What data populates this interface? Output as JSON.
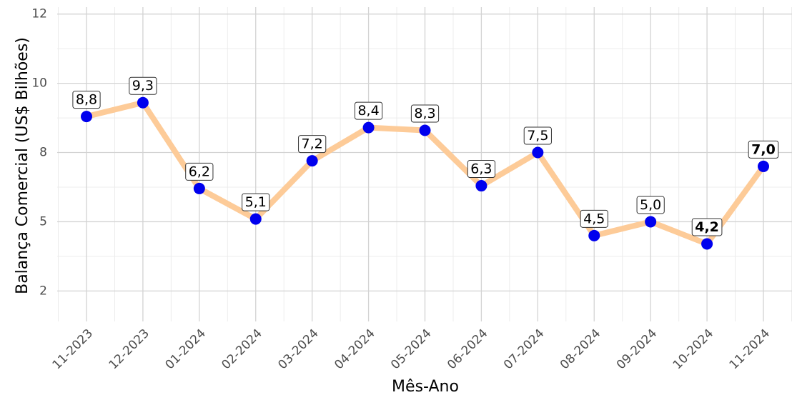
{
  "chart_data": {
    "type": "line",
    "x_label": "Mês-Ano",
    "y_label": "Balança Comercial (US$ Bilhões)",
    "categories": [
      "11-2023",
      "12-2023",
      "01-2024",
      "02-2024",
      "03-2024",
      "04-2024",
      "05-2024",
      "06-2024",
      "07-2024",
      "08-2024",
      "09-2024",
      "10-2024",
      "11-2024"
    ],
    "series": [
      {
        "name": "Balança Comercial",
        "color": "#fdcb98",
        "marker_color": "#0000ee",
        "values": [
          8.8,
          9.3,
          6.2,
          5.1,
          7.2,
          8.4,
          8.3,
          6.3,
          7.5,
          4.5,
          5.0,
          4.2,
          7.0
        ],
        "value_labels": [
          "8,8",
          "9,3",
          "6,2",
          "5,1",
          "7,2",
          "8,4",
          "8,3",
          "6,3",
          "7,5",
          "4,5",
          "5,0",
          "4,2",
          "7,0"
        ],
        "bold_labels": [
          11,
          12
        ]
      }
    ],
    "ylim": [
      1.4,
      12.75
    ],
    "yticks": [
      {
        "value": 2.5,
        "label": "2"
      },
      5,
      {
        "value": 7.5,
        "label": "8"
      },
      10,
      {
        "value": 12.5,
        "label": "12"
      }
    ],
    "grid": true
  }
}
